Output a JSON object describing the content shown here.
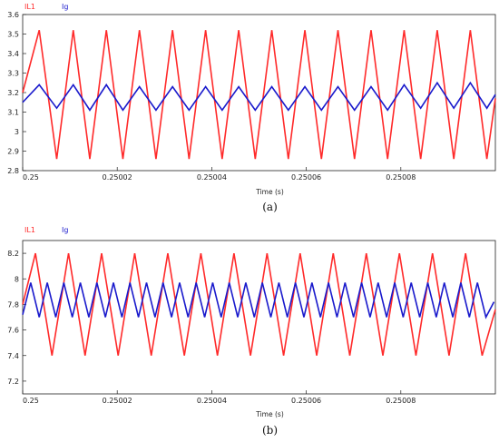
{
  "chart_data": [
    {
      "type": "line",
      "caption": "(a)",
      "xlabel": "Time (s)",
      "xlim": [
        0.25,
        0.2501
      ],
      "ylim": [
        2.8,
        3.6
      ],
      "x_ticks": [
        "0.25",
        "0.25002",
        "0.25004",
        "0.25006",
        "0.25008"
      ],
      "y_ticks": [
        "2.8",
        "2.9",
        "3",
        "3.1",
        "3.2",
        "3.3",
        "3.4",
        "3.5",
        "3.6"
      ],
      "series": [
        {
          "name": "IL1",
          "color": "#ff2a2a",
          "x": [
            0.25,
            0.2500035,
            0.2500072,
            0.2500107,
            0.2500142,
            0.2500177,
            0.2500212,
            0.2500247,
            0.2500282,
            0.2500317,
            0.2500352,
            0.2500387,
            0.2500422,
            0.2500457,
            0.2500492,
            0.2500527,
            0.2500562,
            0.2500597,
            0.2500632,
            0.2500667,
            0.2500702,
            0.2500737,
            0.2500772,
            0.2500807,
            0.2500842,
            0.2500877,
            0.2500912,
            0.2500947,
            0.2500982,
            0.2501
          ],
          "y": [
            3.2,
            3.52,
            2.86,
            3.52,
            2.86,
            3.52,
            2.86,
            3.52,
            2.86,
            3.52,
            2.86,
            3.52,
            2.86,
            3.52,
            2.86,
            3.52,
            2.86,
            3.52,
            2.86,
            3.52,
            2.86,
            3.52,
            2.86,
            3.52,
            2.86,
            3.52,
            2.86,
            3.52,
            2.86,
            3.17
          ]
        },
        {
          "name": "Ig",
          "color": "#1a1acc",
          "x": [
            0.25,
            0.2500035,
            0.2500072,
            0.2500107,
            0.2500142,
            0.2500177,
            0.2500212,
            0.2500247,
            0.2500282,
            0.2500317,
            0.2500352,
            0.2500387,
            0.2500422,
            0.2500457,
            0.2500492,
            0.2500527,
            0.2500562,
            0.2500597,
            0.2500632,
            0.2500667,
            0.2500702,
            0.2500737,
            0.2500772,
            0.2500807,
            0.2500842,
            0.2500877,
            0.2500912,
            0.2500947,
            0.2500982,
            0.2501
          ],
          "y": [
            3.15,
            3.24,
            3.12,
            3.24,
            3.11,
            3.24,
            3.11,
            3.23,
            3.11,
            3.23,
            3.11,
            3.23,
            3.11,
            3.23,
            3.11,
            3.23,
            3.11,
            3.23,
            3.11,
            3.23,
            3.11,
            3.23,
            3.11,
            3.24,
            3.12,
            3.25,
            3.12,
            3.25,
            3.12,
            3.19
          ]
        }
      ]
    },
    {
      "type": "line",
      "caption": "(b)",
      "xlabel": "Time (s)",
      "xlim": [
        0.25,
        0.2501
      ],
      "ylim": [
        7.1,
        8.3
      ],
      "x_ticks": [
        "0.25",
        "0.25002",
        "0.25004",
        "0.25006",
        "0.25008"
      ],
      "y_ticks": [
        "7.2",
        "7.4",
        "7.6",
        "7.8",
        "8",
        "8.2"
      ],
      "series": [
        {
          "name": "IL1",
          "color": "#ff2a2a",
          "x": [
            0.25,
            0.2500027,
            0.2500062,
            0.2500097,
            0.2500132,
            0.2500167,
            0.2500202,
            0.2500237,
            0.2500272,
            0.2500307,
            0.2500342,
            0.2500377,
            0.2500412,
            0.2500447,
            0.2500482,
            0.2500517,
            0.2500552,
            0.2500587,
            0.2500622,
            0.2500657,
            0.2500692,
            0.2500727,
            0.2500762,
            0.2500797,
            0.2500832,
            0.2500867,
            0.2500902,
            0.2500937,
            0.2500972,
            0.2501
          ],
          "y": [
            7.8,
            8.2,
            7.4,
            8.2,
            7.4,
            8.2,
            7.4,
            8.2,
            7.4,
            8.2,
            7.4,
            8.2,
            7.4,
            8.2,
            7.4,
            8.2,
            7.4,
            8.2,
            7.4,
            8.2,
            7.4,
            8.2,
            7.4,
            8.2,
            7.4,
            8.2,
            7.4,
            8.2,
            7.4,
            7.76
          ]
        },
        {
          "name": "Ig",
          "color": "#1a1acc",
          "x": [
            0.25,
            0.2500017,
            0.2500035,
            0.2500052,
            0.250007,
            0.2500087,
            0.2500105,
            0.2500122,
            0.250014,
            0.2500157,
            0.2500175,
            0.2500192,
            0.250021,
            0.2500227,
            0.2500245,
            0.2500262,
            0.250028,
            0.2500297,
            0.2500315,
            0.2500332,
            0.250035,
            0.2500367,
            0.2500385,
            0.2500402,
            0.250042,
            0.2500437,
            0.2500455,
            0.2500472,
            0.250049,
            0.2500507,
            0.2500525,
            0.2500542,
            0.250056,
            0.2500577,
            0.2500595,
            0.2500612,
            0.250063,
            0.2500647,
            0.2500665,
            0.2500682,
            0.25007,
            0.2500717,
            0.2500735,
            0.2500752,
            0.250077,
            0.2500787,
            0.2500805,
            0.2500822,
            0.250084,
            0.2500857,
            0.2500875,
            0.2500892,
            0.250091,
            0.2500927,
            0.2500945,
            0.2500962,
            0.250098,
            0.2500997
          ],
          "y": [
            7.72,
            7.97,
            7.7,
            7.97,
            7.7,
            7.97,
            7.7,
            7.97,
            7.7,
            7.97,
            7.7,
            7.97,
            7.7,
            7.97,
            7.7,
            7.97,
            7.7,
            7.97,
            7.7,
            7.97,
            7.7,
            7.97,
            7.7,
            7.97,
            7.7,
            7.97,
            7.7,
            7.97,
            7.7,
            7.97,
            7.7,
            7.97,
            7.7,
            7.97,
            7.7,
            7.97,
            7.7,
            7.97,
            7.7,
            7.97,
            7.7,
            7.97,
            7.7,
            7.97,
            7.7,
            7.97,
            7.7,
            7.97,
            7.7,
            7.97,
            7.7,
            7.97,
            7.7,
            7.97,
            7.7,
            7.97,
            7.7,
            7.82
          ]
        }
      ]
    }
  ]
}
